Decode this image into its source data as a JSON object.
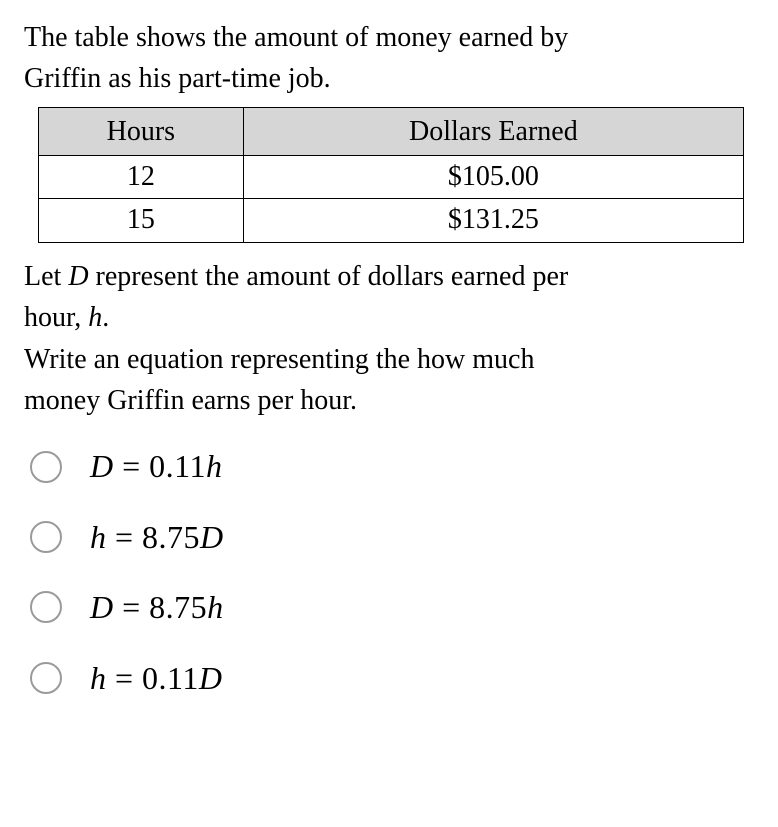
{
  "intro_line1": "The table shows the amount of money earned by",
  "intro_line2": "Griffin as his part-time job.",
  "table": {
    "header_hours": "Hours",
    "header_dollars": "Dollars Earned",
    "rows": [
      {
        "hours": "12",
        "dollars": "$105.00"
      },
      {
        "hours": "15",
        "dollars": "$131.25"
      }
    ],
    "header_bg": "#d6d6d6",
    "border_color": "#000000"
  },
  "mid1_a": "Let ",
  "mid1_D": "D",
  "mid1_b": " represent the amount of dollars earned per",
  "mid2_a": "hour, ",
  "mid2_h": "h",
  "mid2_b": ".",
  "mid3": "Write an equation representing the how much",
  "mid4": "money Griffin earns per hour.",
  "options": {
    "a": {
      "lhs": "D",
      "eq": " = ",
      "coef": "0.11",
      "rhs": "h"
    },
    "b": {
      "lhs": "h",
      "eq": " = ",
      "coef": "8.75",
      "rhs": "D"
    },
    "c": {
      "lhs": "D",
      "eq": " = ",
      "coef": "8.75",
      "rhs": "h"
    },
    "d": {
      "lhs": "h",
      "eq": " = ",
      "coef": "0.11",
      "rhs": "D"
    }
  },
  "colors": {
    "text": "#000000",
    "radio_border": "#9a9a9a",
    "background": "#ffffff"
  }
}
